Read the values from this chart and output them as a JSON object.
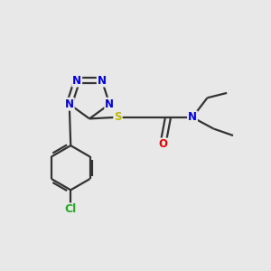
{
  "background_color": "#e8e8e8",
  "bond_color": "#333333",
  "N_color": "#0000EE",
  "O_color": "#EE0000",
  "S_color": "#BBBB00",
  "Cl_color": "#22AA22",
  "line_width": 1.6,
  "font_size": 8.5,
  "figsize": [
    3.0,
    3.0
  ],
  "dpi": 100,
  "xlim": [
    0,
    10
  ],
  "ylim": [
    0,
    10
  ]
}
